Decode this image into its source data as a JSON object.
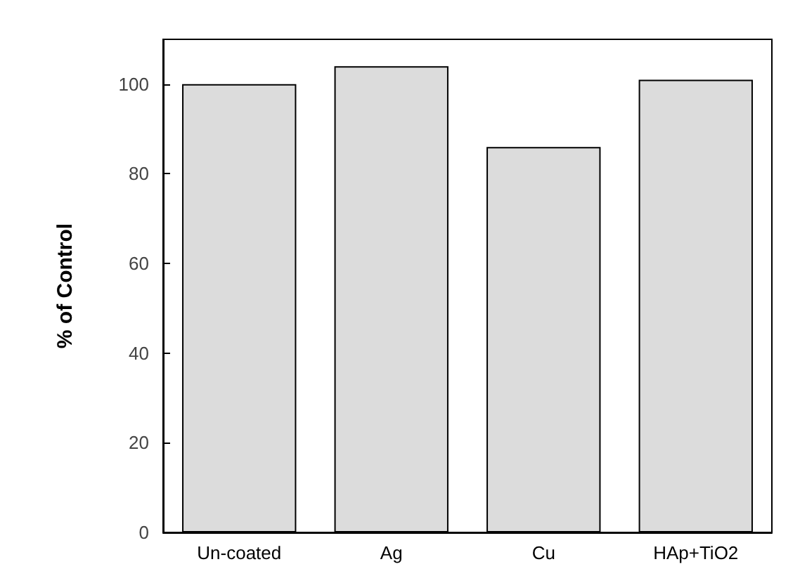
{
  "chart_data": {
    "type": "bar",
    "ylabel": "% of Control",
    "categories": [
      "Un-coated",
      "Ag",
      "Cu",
      "HAp+TiO2"
    ],
    "values": [
      100,
      104,
      86,
      101
    ],
    "color": "#dcdcdc",
    "ylim": [
      0,
      110
    ],
    "yticks": [
      0,
      20,
      40,
      60,
      80,
      100
    ],
    "grid": false
  }
}
